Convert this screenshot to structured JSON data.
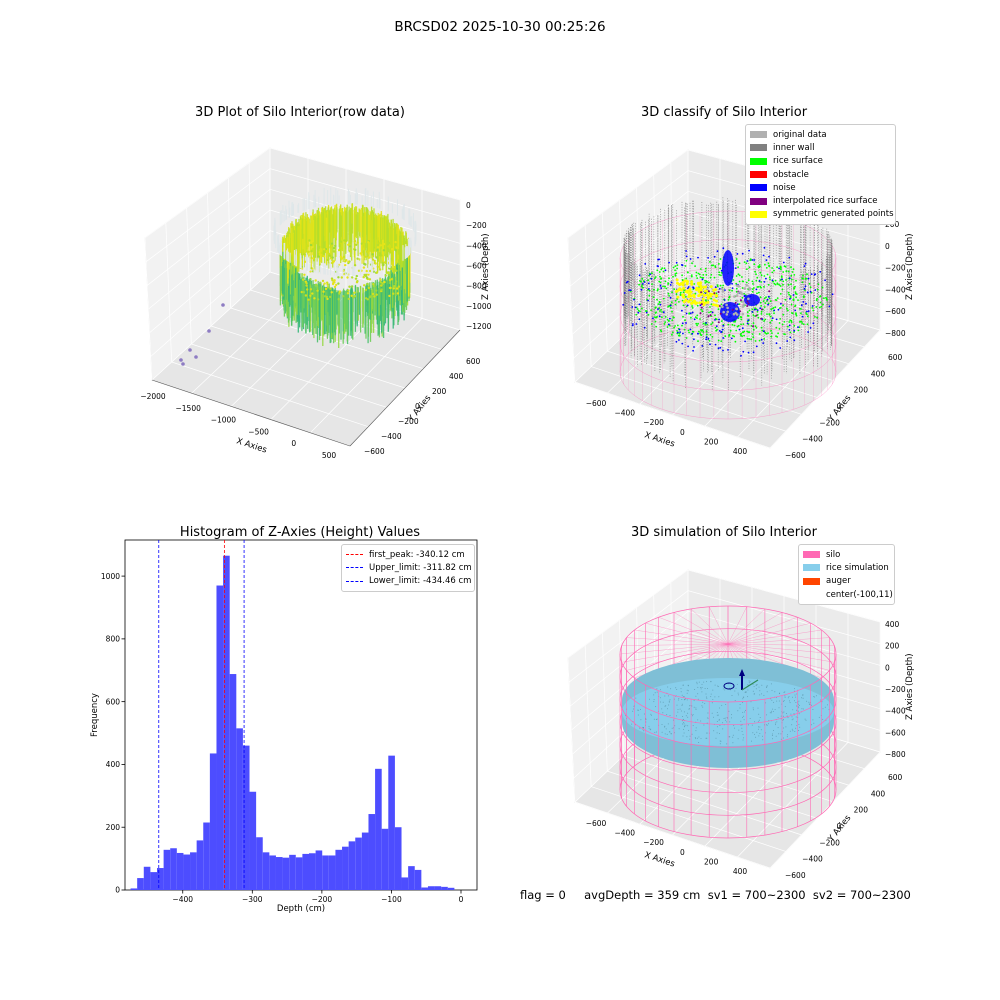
{
  "figure": {
    "suptitle": "BRCSD02 2025-10-30 00:25:26",
    "status_line": "flag = 0     avgDepth = 359 cm  sv1 = 700~2300  sv2 = 700~2300"
  },
  "colors": {
    "histogram_bar": "#4d4dff",
    "first_peak_line": "#ff0000",
    "limit_line": "#0000ff",
    "viridis_low": "#35b779",
    "viridis_high": "#e6e419",
    "outlier_points": "#8e7cc3",
    "silo_wire": "#ff69b4",
    "rice_simulation": "#87ceeb",
    "auger": "#ff4500",
    "original_data": "#b0b0b0",
    "inner_wall": "#808080",
    "rice_surface": "#00ff00",
    "obstacle": "#ff0000",
    "noise": "#0000ff",
    "interpolated_rice_surface": "#800080",
    "symmetric_generated_points": "#ffff00"
  },
  "chart_data": [
    {
      "type": "scatter3d",
      "title": "3D Plot of Silo Interior(row data)",
      "xlabel": "X Axies",
      "ylabel": "Y Axies",
      "zlabel": "Z Axies (Depth)",
      "xticks": [
        "−2000",
        "−1500",
        "−1000",
        "−500",
        "0",
        "500"
      ],
      "yticks": [
        "−600",
        "−400",
        "−200",
        "0",
        "200",
        "400",
        "600"
      ],
      "zticks": [
        "0",
        "−200",
        "−400",
        "−600",
        "−800",
        "−1000",
        "−1200"
      ],
      "xlim": [
        -2000,
        600
      ],
      "ylim": [
        -650,
        650
      ],
      "zlim": [
        -1300,
        50
      ]
    },
    {
      "type": "scatter3d",
      "title": "3D classify of Silo Interior",
      "xlabel": "X Axies",
      "ylabel": "Y Axies",
      "zlabel": "Z Axies (Depth)",
      "xticks": [
        "−600",
        "−400",
        "−200",
        "0",
        "200",
        "400"
      ],
      "yticks": [
        "−600",
        "−400",
        "−200",
        "0",
        "200",
        "400",
        "600"
      ],
      "zticks": [
        "200",
        "0",
        "−200",
        "−400",
        "−600",
        "−800"
      ],
      "zticks_partial_top": "00",
      "legend": [
        {
          "label": "original data",
          "color": "#b0b0b0"
        },
        {
          "label": "inner wall",
          "color": "#808080"
        },
        {
          "label": "rice surface",
          "color": "#00ff00"
        },
        {
          "label": "obstacle",
          "color": "#ff0000"
        },
        {
          "label": "noise",
          "color": "#0000ff"
        },
        {
          "label": "interpolated rice surface",
          "color": "#800080"
        },
        {
          "label": "symmetric generated points",
          "color": "#ffff00"
        }
      ],
      "legend_position": "top-right"
    },
    {
      "type": "bar",
      "title": "Histogram of Z-Axies (Height) Values",
      "xlabel": "Depth (cm)",
      "ylabel": "Frequency",
      "xlim": [
        -483,
        23
      ],
      "ylim": [
        0,
        1115
      ],
      "xticks": [
        -400,
        -300,
        -200,
        -100,
        0
      ],
      "xtick_labels": [
        "−400",
        "−300",
        "−200",
        "−100",
        "0"
      ],
      "yticks": [
        0,
        200,
        400,
        600,
        800,
        1000
      ],
      "bin_width": 9.5,
      "bin_start": -475,
      "values": [
        5,
        38,
        74,
        57,
        70,
        128,
        133,
        118,
        113,
        120,
        158,
        215,
        435,
        970,
        1065,
        688,
        515,
        460,
        313,
        168,
        120,
        110,
        105,
        103,
        112,
        104,
        115,
        117,
        126,
        110,
        110,
        128,
        138,
        155,
        167,
        183,
        242,
        386,
        195,
        428,
        200,
        40,
        76,
        64,
        8,
        12,
        12,
        10,
        7
      ],
      "vlines": [
        {
          "label": "first_peak: -340.12 cm",
          "x": -340.12,
          "color": "#ff0000"
        },
        {
          "label": "Upper_limit: -311.82 cm",
          "x": -311.82,
          "color": "#0000ff"
        },
        {
          "label": "Lower_limit: -434.46 cm",
          "x": -434.46,
          "color": "#0000ff"
        }
      ],
      "legend_position": "top-right"
    },
    {
      "type": "surface3d",
      "title": "3D simulation of Silo Interior",
      "xlabel": "X Axies",
      "ylabel": "Y Axies",
      "zlabel": "Z Axies (Depth)",
      "xticks": [
        "−600",
        "−400",
        "−200",
        "0",
        "200",
        "400"
      ],
      "yticks": [
        "−600",
        "−400",
        "−200",
        "0",
        "200",
        "400",
        "600"
      ],
      "zticks": [
        "400",
        "200",
        "0",
        "−200",
        "−400",
        "−600",
        "−800"
      ],
      "legend": [
        {
          "label": "silo",
          "color": "#ff69b4"
        },
        {
          "label": "rice simulation",
          "color": "#87ceeb"
        },
        {
          "label": "auger",
          "color": "#ff4500"
        },
        {
          "label": "center(-100,11)",
          "color": ""
        }
      ],
      "legend_position": "top-right"
    }
  ]
}
